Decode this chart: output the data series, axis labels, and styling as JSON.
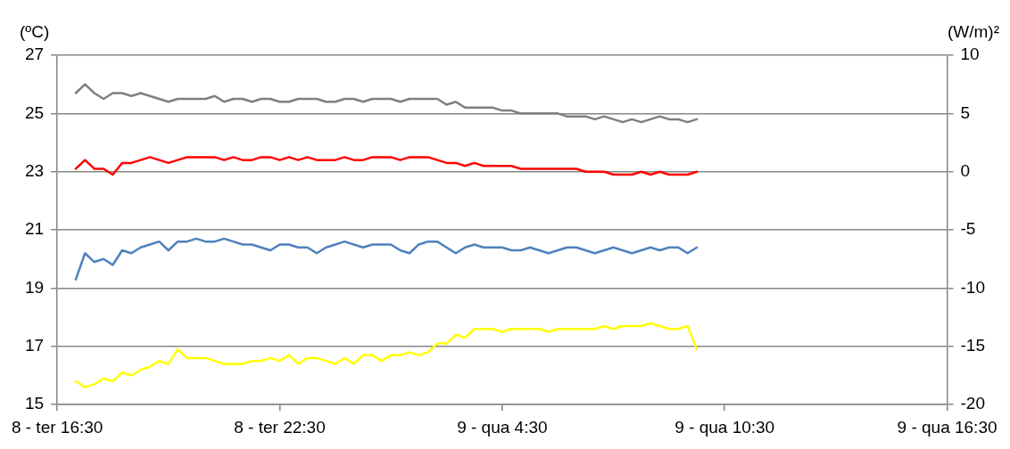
{
  "chart_data": {
    "type": "line",
    "ylabel": "(ºC)",
    "y2label": "(W/m)²",
    "categories": [
      "8 - ter 16:30",
      null,
      null,
      null,
      null,
      null,
      null,
      null,
      null,
      null,
      null,
      null,
      null,
      null,
      null,
      null,
      null,
      null,
      null,
      null,
      null,
      null,
      null,
      null,
      "8 - ter 22:30",
      null,
      null,
      null,
      null,
      null,
      null,
      null,
      null,
      null,
      null,
      null,
      null,
      null,
      null,
      null,
      null,
      null,
      null,
      null,
      null,
      null,
      null,
      null,
      "9 - qua 4:30",
      null,
      null,
      null,
      null,
      null,
      null,
      null,
      null,
      null,
      null,
      null,
      null,
      null,
      null,
      null,
      null,
      null,
      null,
      null,
      null,
      null,
      null,
      null,
      "9 - qua 10:30",
      null,
      null,
      null,
      null,
      null,
      null,
      null,
      null,
      null,
      null,
      null,
      null,
      null,
      null,
      null,
      null,
      null,
      null,
      null,
      null,
      null,
      null,
      null,
      "9 - qua 16:30"
    ],
    "ylim": [
      15,
      27
    ],
    "yticks": [
      15,
      17,
      19,
      21,
      23,
      25,
      27
    ],
    "y2lim": [
      -20,
      10
    ],
    "y2ticks": [
      -20,
      -15,
      -10,
      -5,
      0,
      5,
      10
    ],
    "grid": "y",
    "legend": false,
    "marker": "none",
    "line_style": "solid",
    "series": [
      {
        "color": "#7f7f7f",
        "values": [
          null,
          null,
          25.7,
          26.0,
          25.7,
          25.5,
          25.7,
          25.7,
          25.6,
          25.7,
          25.6,
          25.5,
          25.4,
          25.5,
          25.5,
          25.5,
          25.5,
          25.6,
          25.4,
          25.5,
          25.5,
          25.4,
          25.5,
          25.5,
          25.4,
          25.4,
          25.5,
          25.5,
          25.5,
          25.4,
          25.4,
          25.5,
          25.5,
          25.4,
          25.5,
          25.5,
          25.5,
          25.4,
          25.5,
          25.5,
          25.5,
          25.5,
          25.3,
          25.4,
          25.2,
          25.2,
          25.2,
          25.2,
          25.1,
          25.1,
          25.0,
          25.0,
          25.0,
          25.0,
          25.0,
          24.9,
          24.9,
          24.9,
          24.8,
          24.9,
          24.8,
          24.7,
          24.8,
          24.7,
          24.8,
          24.9,
          24.8,
          24.8,
          24.7,
          24.8,
          null,
          null,
          null,
          null,
          null,
          null,
          null,
          null,
          null,
          null,
          null,
          null,
          null,
          null,
          null,
          null,
          null,
          null,
          null,
          null,
          null,
          null,
          null,
          null,
          null,
          null,
          null
        ]
      },
      {
        "color": "#ff0000",
        "values": [
          null,
          null,
          23.1,
          23.4,
          23.1,
          23.1,
          22.9,
          23.3,
          23.3,
          23.4,
          23.5,
          23.4,
          23.3,
          23.4,
          23.5,
          23.5,
          23.5,
          23.5,
          23.4,
          23.5,
          23.4,
          23.4,
          23.5,
          23.5,
          23.4,
          23.5,
          23.4,
          23.5,
          23.4,
          23.4,
          23.4,
          23.5,
          23.4,
          23.4,
          23.5,
          23.5,
          23.5,
          23.4,
          23.5,
          23.5,
          23.5,
          23.4,
          23.3,
          23.3,
          23.2,
          23.3,
          23.2,
          23.2,
          23.2,
          23.2,
          23.1,
          23.1,
          23.1,
          23.1,
          23.1,
          23.1,
          23.1,
          23.0,
          23.0,
          23.0,
          22.9,
          22.9,
          22.9,
          23.0,
          22.9,
          23.0,
          22.9,
          22.9,
          22.9,
          23.0,
          null,
          null,
          null,
          null,
          null,
          null,
          null,
          null,
          null,
          null,
          null,
          null,
          null,
          null,
          null,
          null,
          null,
          null,
          null,
          null,
          null,
          null,
          null,
          null,
          null,
          null,
          null
        ]
      },
      {
        "color": "#4f81bd",
        "values": [
          null,
          null,
          19.3,
          20.2,
          19.9,
          20.0,
          19.8,
          20.3,
          20.2,
          20.4,
          20.5,
          20.6,
          20.3,
          20.6,
          20.6,
          20.7,
          20.6,
          20.6,
          20.7,
          20.6,
          20.5,
          20.5,
          20.4,
          20.3,
          20.5,
          20.5,
          20.4,
          20.4,
          20.2,
          20.4,
          20.5,
          20.6,
          20.5,
          20.4,
          20.5,
          20.5,
          20.5,
          20.3,
          20.2,
          20.5,
          20.6,
          20.6,
          20.4,
          20.2,
          20.4,
          20.5,
          20.4,
          20.4,
          20.4,
          20.3,
          20.3,
          20.4,
          20.3,
          20.2,
          20.3,
          20.4,
          20.4,
          20.3,
          20.2,
          20.3,
          20.4,
          20.3,
          20.2,
          20.3,
          20.4,
          20.3,
          20.4,
          20.4,
          20.2,
          20.4,
          null,
          null,
          null,
          null,
          null,
          null,
          null,
          null,
          null,
          null,
          null,
          null,
          null,
          null,
          null,
          null,
          null,
          null,
          null,
          null,
          null,
          null,
          null,
          null,
          null,
          null,
          null
        ]
      },
      {
        "color": "#ffff00",
        "values": [
          null,
          null,
          15.8,
          15.6,
          15.7,
          15.9,
          15.8,
          16.1,
          16.0,
          16.2,
          16.3,
          16.5,
          16.4,
          16.9,
          16.6,
          16.6,
          16.6,
          16.5,
          16.4,
          16.4,
          16.4,
          16.5,
          16.5,
          16.6,
          16.5,
          16.7,
          16.4,
          16.6,
          16.6,
          16.5,
          16.4,
          16.6,
          16.4,
          16.7,
          16.7,
          16.5,
          16.7,
          16.7,
          16.8,
          16.7,
          16.8,
          17.1,
          17.1,
          17.4,
          17.3,
          17.6,
          17.6,
          17.6,
          17.5,
          17.6,
          17.6,
          17.6,
          17.6,
          17.5,
          17.6,
          17.6,
          17.6,
          17.6,
          17.6,
          17.7,
          17.6,
          17.7,
          17.7,
          17.7,
          17.8,
          17.7,
          17.6,
          17.6,
          17.7,
          16.9,
          null,
          null,
          null,
          null,
          null,
          null,
          null,
          null,
          null,
          null,
          null,
          null,
          null,
          null,
          null,
          null,
          null,
          null,
          null,
          null,
          null,
          null,
          null,
          null,
          null,
          null,
          null
        ]
      }
    ]
  }
}
